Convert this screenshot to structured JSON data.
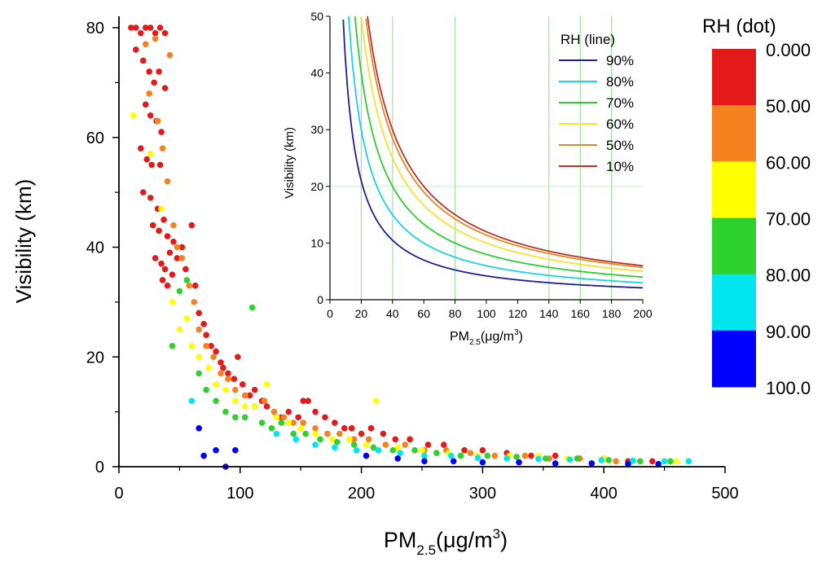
{
  "chart_data": [
    {
      "type": "scatter",
      "xlabel": "PM2.5(μg/m3)",
      "xlabel_parts": {
        "base": "PM",
        "sub": "2.5",
        "unit_pre": "(μg/m",
        "unit_sup": "3",
        "unit_post": ")"
      },
      "ylabel": "Visibility (km)",
      "xlim": [
        0,
        500
      ],
      "ylim": [
        0,
        80
      ],
      "xticks": [
        0,
        100,
        200,
        300,
        400,
        500
      ],
      "yticks": [
        0,
        20,
        40,
        60,
        80
      ],
      "grid": false,
      "color_encoding": "RH",
      "colorbar": {
        "title": "RH (dot)",
        "labels": [
          "0.000",
          "50.00",
          "60.00",
          "70.00",
          "80.00",
          "90.00",
          "100.0"
        ],
        "colors": [
          "#e41a1a",
          "#f58220",
          "#ffff00",
          "#2ed12e",
          "#00e5ee",
          "#0000ff"
        ],
        "placement": "right"
      },
      "series": [
        {
          "rh_band": "0-50",
          "color": "#e41a1a",
          "points": [
            [
              10,
              80
            ],
            [
              14,
              80
            ],
            [
              18,
              79
            ],
            [
              22,
              80
            ],
            [
              26,
              80
            ],
            [
              30,
              79
            ],
            [
              34,
              80
            ],
            [
              38,
              79
            ],
            [
              14,
              76
            ],
            [
              20,
              74
            ],
            [
              25,
              72
            ],
            [
              29,
              70
            ],
            [
              33,
              72
            ],
            [
              38,
              69
            ],
            [
              22,
              66
            ],
            [
              26,
              64
            ],
            [
              31,
              63
            ],
            [
              35,
              61
            ],
            [
              18,
              58
            ],
            [
              23,
              56
            ],
            [
              27,
              55
            ],
            [
              34,
              55
            ],
            [
              20,
              50
            ],
            [
              26,
              49
            ],
            [
              32,
              47
            ],
            [
              37,
              45
            ],
            [
              28,
              44
            ],
            [
              33,
              43
            ],
            [
              40,
              42
            ],
            [
              45,
              41
            ],
            [
              30,
              38
            ],
            [
              35,
              37
            ],
            [
              38,
              36
            ],
            [
              42,
              39
            ],
            [
              44,
              35
            ],
            [
              36,
              34
            ],
            [
              40,
              33
            ],
            [
              48,
              38
            ],
            [
              52,
              40
            ],
            [
              55,
              36
            ],
            [
              60,
              44
            ],
            [
              63,
              33
            ],
            [
              66,
              28
            ],
            [
              70,
              26
            ],
            [
              72,
              24
            ],
            [
              76,
              22
            ],
            [
              80,
              21
            ],
            [
              84,
              19
            ],
            [
              86,
              18
            ],
            [
              90,
              17
            ],
            [
              95,
              16
            ],
            [
              98,
              20
            ],
            [
              102,
              15
            ],
            [
              108,
              13
            ],
            [
              112,
              14
            ],
            [
              118,
              12
            ],
            [
              122,
              11
            ],
            [
              128,
              10
            ],
            [
              134,
              9
            ],
            [
              140,
              10
            ],
            [
              148,
              9
            ],
            [
              152,
              12
            ],
            [
              156,
              12
            ],
            [
              162,
              10
            ],
            [
              170,
              9
            ],
            [
              178,
              8
            ],
            [
              186,
              7
            ],
            [
              192,
              7
            ],
            [
              200,
              6
            ],
            [
              208,
              7
            ],
            [
              218,
              6
            ],
            [
              228,
              5
            ],
            [
              240,
              5
            ],
            [
              255,
              4
            ],
            [
              268,
              4
            ],
            [
              285,
              3
            ],
            [
              300,
              3
            ],
            [
              320,
              2.5
            ],
            [
              340,
              2
            ],
            [
              360,
              2
            ],
            [
              380,
              1.5
            ],
            [
              400,
              1.5
            ],
            [
              420,
              1
            ],
            [
              440,
              1
            ]
          ]
        },
        {
          "rh_band": "50-60",
          "color": "#f58220",
          "points": [
            [
              22,
              77
            ],
            [
              30,
              78
            ],
            [
              42,
              75
            ],
            [
              25,
              68
            ],
            [
              32,
              63
            ],
            [
              36,
              58
            ],
            [
              40,
              52
            ],
            [
              45,
              44
            ],
            [
              48,
              40
            ],
            [
              52,
              38
            ],
            [
              58,
              33
            ],
            [
              62,
              30
            ],
            [
              66,
              25
            ],
            [
              72,
              22
            ],
            [
              78,
              20
            ],
            [
              84,
              17
            ],
            [
              90,
              16
            ],
            [
              96,
              14
            ],
            [
              104,
              13
            ],
            [
              112,
              11
            ],
            [
              120,
              12
            ],
            [
              128,
              10
            ],
            [
              136,
              9
            ],
            [
              144,
              8
            ],
            [
              152,
              8
            ],
            [
              162,
              7
            ],
            [
              172,
              6
            ],
            [
              182,
              6
            ],
            [
              194,
              5
            ],
            [
              206,
              5
            ],
            [
              220,
              4
            ],
            [
              236,
              4
            ],
            [
              252,
              3
            ],
            [
              270,
              3
            ],
            [
              290,
              2.5
            ],
            [
              310,
              2
            ],
            [
              335,
              2
            ],
            [
              355,
              1.5
            ],
            [
              380,
              1.5
            ],
            [
              410,
              1
            ]
          ]
        },
        {
          "rh_band": "60-70",
          "color": "#ffff00",
          "points": [
            [
              12,
              64
            ],
            [
              26,
              57
            ],
            [
              35,
              47
            ],
            [
              44,
              30
            ],
            [
              50,
              25
            ],
            [
              56,
              27
            ],
            [
              60,
              22
            ],
            [
              66,
              20
            ],
            [
              74,
              18
            ],
            [
              80,
              15
            ],
            [
              88,
              14
            ],
            [
              96,
              12
            ],
            [
              104,
              11
            ],
            [
              112,
              11
            ],
            [
              122,
              15
            ],
            [
              130,
              9
            ],
            [
              140,
              8
            ],
            [
              150,
              7
            ],
            [
              162,
              6
            ],
            [
              176,
              5
            ],
            [
              190,
              5
            ],
            [
              204,
              4
            ],
            [
              212,
              12
            ],
            [
              230,
              3.5
            ],
            [
              250,
              3
            ],
            [
              272,
              2.5
            ],
            [
              296,
              2
            ],
            [
              322,
              2
            ],
            [
              346,
              2
            ],
            [
              370,
              1.5
            ],
            [
              400,
              1.5
            ],
            [
              430,
              1
            ],
            [
              460,
              1
            ]
          ]
        },
        {
          "rh_band": "70-80",
          "color": "#2ed12e",
          "points": [
            [
              44,
              22
            ],
            [
              50,
              32
            ],
            [
              56,
              34
            ],
            [
              66,
              17
            ],
            [
              72,
              14
            ],
            [
              80,
              12
            ],
            [
              88,
              10
            ],
            [
              96,
              9
            ],
            [
              104,
              9
            ],
            [
              110,
              29
            ],
            [
              118,
              8
            ],
            [
              126,
              7
            ],
            [
              134,
              8
            ],
            [
              144,
              6
            ],
            [
              154,
              6
            ],
            [
              166,
              5
            ],
            [
              180,
              4.5
            ],
            [
              194,
              4
            ],
            [
              210,
              3.5
            ],
            [
              226,
              3
            ],
            [
              244,
              3
            ],
            [
              262,
              2.5
            ],
            [
              282,
              2
            ],
            [
              304,
              2
            ],
            [
              328,
              1.8
            ],
            [
              352,
              1.5
            ],
            [
              378,
              1.5
            ],
            [
              404,
              1.2
            ],
            [
              430,
              1
            ],
            [
              455,
              1
            ]
          ]
        },
        {
          "rh_band": "80-90",
          "color": "#00e5ee",
          "points": [
            [
              60,
              12
            ],
            [
              130,
              6
            ],
            [
              146,
              5
            ],
            [
              162,
              4
            ],
            [
              178,
              3.5
            ],
            [
              196,
              3
            ],
            [
              214,
              3
            ],
            [
              232,
              2.5
            ],
            [
              252,
              2
            ],
            [
              274,
              2
            ],
            [
              296,
              1.6
            ],
            [
              320,
              1.5
            ],
            [
              346,
              1.4
            ],
            [
              372,
              1.3
            ],
            [
              398,
              1.2
            ],
            [
              424,
              1.1
            ],
            [
              450,
              1
            ],
            [
              470,
              1
            ]
          ]
        },
        {
          "rh_band": "90-100",
          "color": "#0000ff",
          "points": [
            [
              66,
              7
            ],
            [
              70,
              2
            ],
            [
              80,
              3
            ],
            [
              88,
              0
            ],
            [
              96,
              3
            ],
            [
              204,
              2
            ],
            [
              230,
              1.5
            ],
            [
              252,
              1
            ],
            [
              276,
              1
            ],
            [
              300,
              0.8
            ],
            [
              330,
              0.8
            ],
            [
              360,
              0.6
            ],
            [
              390,
              0.6
            ],
            [
              420,
              0.5
            ],
            [
              445,
              0.5
            ]
          ]
        }
      ]
    },
    {
      "type": "line",
      "inset": true,
      "xlabel": "PM2.5(μg/m3)",
      "xlabel_parts": {
        "base": "PM",
        "sub": "2.5",
        "unit_pre": "(μg/m",
        "unit_sup": "3",
        "unit_post": ")"
      },
      "ylabel": "Visibility (km)",
      "xlim": [
        0,
        200
      ],
      "ylim": [
        0,
        50
      ],
      "xticks": [
        0,
        20,
        40,
        60,
        80,
        100,
        120,
        140,
        160,
        180,
        200
      ],
      "yticks": [
        0,
        10,
        20,
        30,
        40,
        50
      ],
      "grid_lines_x": [
        20,
        40,
        80,
        140,
        160,
        180
      ],
      "legend": {
        "title": "RH (line)",
        "placement": "top-right"
      },
      "series": [
        {
          "name": "90%",
          "color": "#1f1f8f",
          "k": 420
        },
        {
          "name": "80%",
          "color": "#19d3e3",
          "k": 600
        },
        {
          "name": "70%",
          "color": "#2ecc2e",
          "k": 800
        },
        {
          "name": "60%",
          "color": "#f2e333",
          "k": 1000
        },
        {
          "name": "50%",
          "color": "#e08a20",
          "k": 1140
        },
        {
          "name": "10%",
          "color": "#c0302a",
          "k": 1200
        }
      ]
    }
  ]
}
